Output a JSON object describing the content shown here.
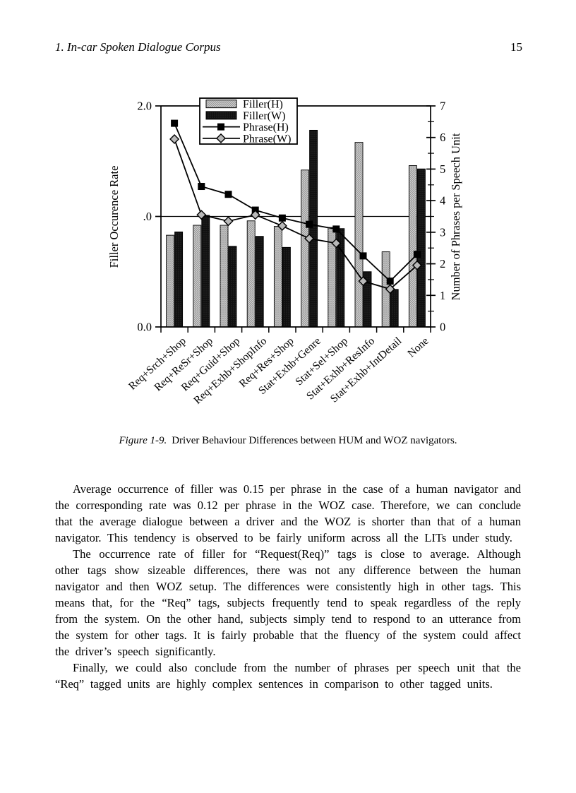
{
  "page": {
    "header": {
      "title": "1. In-car Spoken Dialogue Corpus",
      "page_number": "15"
    },
    "figure": {
      "caption_label": "Figure 1-9.",
      "caption_text": "Driver Behaviour Differences between HUM and WOZ navigators."
    },
    "paragraphs": [
      "Average occurrence of filler was 0.15 per phrase in the case of a human navigator and the corresponding rate was 0.12 per phrase in the WOZ case. Therefore, we can conclude that the average dialogue between a driver and the WOZ is shorter than that of a human navigator. This tendency is observed to be fairly uniform across all the LITs under study.",
      "The occurrence rate of filler for “Request(Req)” tags is close to average. Although other tags show sizeable differences, there was not any difference between the human navigator and then WOZ setup. The differences were consistently high in other tags. This means that, for the “Req” tags, subjects frequently tend to speak regardless of the reply from the system. On the other hand, subjects simply tend to respond to an utterance from the system for other tags. It is fairly probable that the fluency of the system could affect the driver’s speech significantly.",
      "Finally, we could also conclude from the number of phrases per speech unit that the “Req” tagged units are highly complex sentences in comparison to other tagged units."
    ]
  },
  "chart_data": {
    "type": "bar",
    "title": "",
    "categories": [
      "Req+Srch+Shop",
      "Req+ReSr+Shop",
      "Req+Guid+Shop",
      "Req+Exhb+ShopInfo",
      "Req+Res+Shop",
      "Stat+Exhb+Genre",
      "Stat+Sel+Shop",
      "Stat+Exhb+ResInfo",
      "Stat+Exhb+IntDetail",
      "None"
    ],
    "series": [
      {
        "name": "Filler(H)",
        "render": "bar",
        "axis": "left",
        "color": "#c6c6c6",
        "values": [
          0.83,
          0.92,
          0.92,
          0.96,
          0.91,
          1.42,
          0.9,
          1.67,
          0.68,
          1.46
        ]
      },
      {
        "name": "Filler(W)",
        "render": "bar",
        "axis": "left",
        "color": "#161616",
        "values": [
          0.86,
          1.01,
          0.73,
          0.82,
          0.72,
          1.78,
          0.89,
          0.5,
          0.34,
          1.43
        ]
      },
      {
        "name": "Phrase(H)",
        "render": "line",
        "axis": "right",
        "marker": "square",
        "color": "#000000",
        "values": [
          6.45,
          4.45,
          4.2,
          3.7,
          3.45,
          3.25,
          3.1,
          2.25,
          1.45,
          2.3
        ]
      },
      {
        "name": "Phrase(W)",
        "render": "line",
        "axis": "right",
        "marker": "diamond",
        "color": "#000000",
        "values": [
          5.95,
          3.55,
          3.35,
          3.55,
          3.2,
          2.8,
          2.65,
          1.45,
          1.2,
          1.95
        ]
      }
    ],
    "left_axis": {
      "label": "Filler Occurence Rate",
      "range": [
        0,
        2
      ],
      "ticks": [
        {
          "v": 2,
          "t": "2.0"
        },
        {
          "v": 1,
          "t": ".0"
        },
        {
          "v": 0,
          "t": "0.0"
        }
      ],
      "gridline_at": 1
    },
    "right_axis": {
      "label": "Number of Phrases per Speech Unit",
      "range": [
        0,
        7
      ],
      "ticks": [
        0,
        1,
        2,
        3,
        4,
        5,
        6,
        7
      ],
      "minor_step": 0.5
    },
    "legend": {
      "position": "top-left-inside",
      "entries": [
        "Filler(H)",
        "Filler(W)",
        "Phrase(H)",
        "Phrase(W)"
      ]
    },
    "grid": "horizontal line at left-axis 1.0 only"
  }
}
